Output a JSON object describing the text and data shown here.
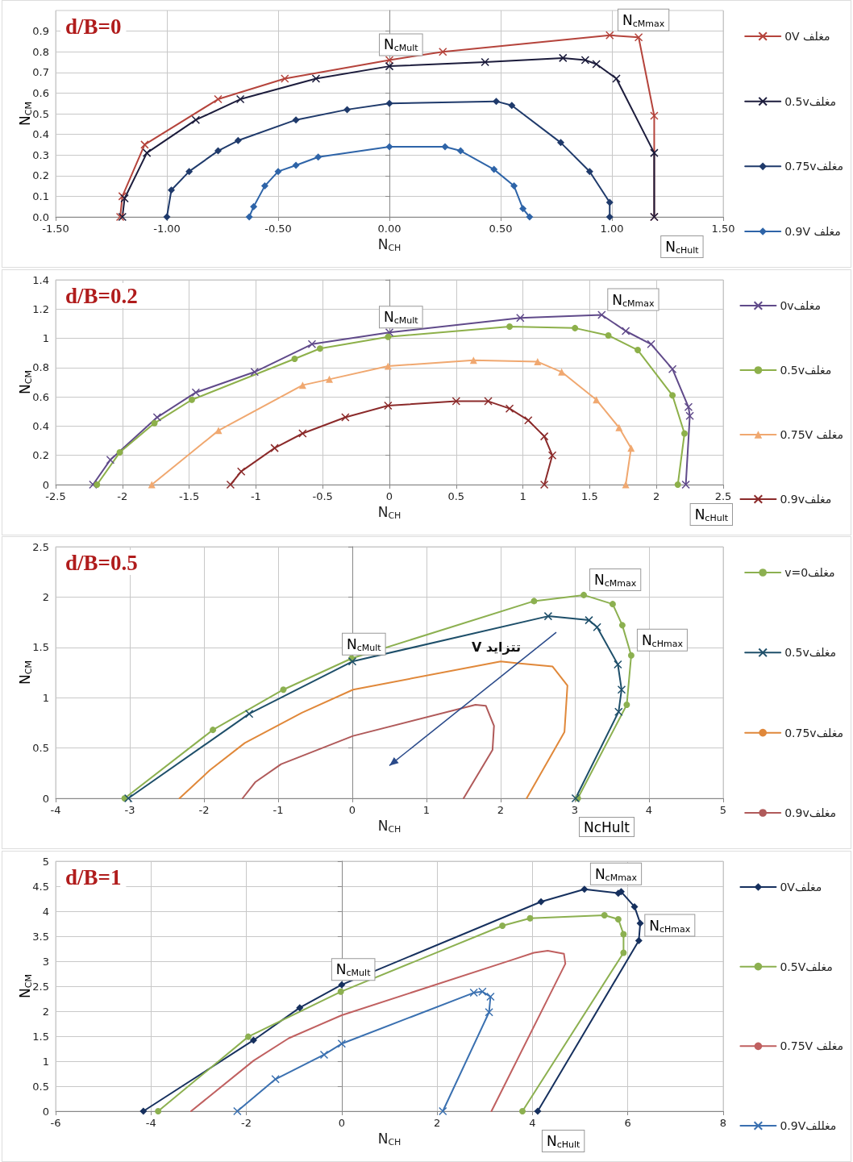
{
  "chart_data": [
    {
      "type": "line",
      "title": "d/B=0",
      "xlabel": "N$_{CH}$",
      "ylabel": "N$_{CM}$",
      "grid": true,
      "legend": "right",
      "xlim": [
        -1.5,
        1.5
      ],
      "xticks": [
        {
          "value": -1.5,
          "label": "-1.50"
        },
        {
          "value": -1,
          "label": "-1.00"
        },
        {
          "value": -0.5,
          "label": "-0.50"
        },
        {
          "value": 0,
          "label": "0.00"
        },
        {
          "value": 0.5,
          "label": "0.50"
        },
        {
          "value": 1,
          "label": "1.00"
        },
        {
          "value": 1.5,
          "label": "1.50"
        }
      ],
      "ylim": [
        0,
        1
      ],
      "yticks": [
        {
          "value": 0,
          "label": "0.0"
        },
        0.1,
        0.2,
        0.3,
        0.4,
        0.5,
        0.6,
        0.7,
        0.8,
        0.9
      ],
      "annotations": [
        {
          "text": "N$_{cMult}$",
          "x": 0,
          "y": 0.76
        },
        {
          "text": "N$_{cMmax}$",
          "x": 1.0,
          "y": 0.88
        },
        {
          "text": "N$_{cHult}$",
          "x": 1.2,
          "y": 0
        }
      ],
      "series": [
        {
          "name": "0V مغلف",
          "color": "#b5443c",
          "marker": "cross",
          "x": [
            -1.21,
            -1.2,
            -1.1,
            -0.77,
            -0.47,
            0,
            0.24,
            0.99,
            1.12,
            1.19,
            1.19
          ],
          "values": [
            0,
            0.1,
            0.35,
            0.57,
            0.67,
            0.76,
            0.8,
            0.88,
            0.87,
            0.49,
            0
          ]
        },
        {
          "name": "0.5vمغلف",
          "color": "#1c1c3c",
          "marker": "cross",
          "x": [
            -1.2,
            -1.19,
            -1.09,
            -0.87,
            -0.67,
            -0.33,
            0,
            0.43,
            0.78,
            0.88,
            0.93,
            1.02,
            1.19,
            1.19
          ],
          "values": [
            0,
            0.09,
            0.31,
            0.47,
            0.57,
            0.67,
            0.73,
            0.75,
            0.77,
            0.76,
            0.74,
            0.67,
            0.31,
            0
          ]
        },
        {
          "name": "0.75vمغلف",
          "color": "#1f3a6b",
          "marker": "diamond",
          "x": [
            -1.0,
            -0.98,
            -0.9,
            -0.77,
            -0.68,
            -0.42,
            -0.19,
            0,
            0.48,
            0.55,
            0.77,
            0.9,
            0.99,
            0.99
          ],
          "values": [
            0,
            0.13,
            0.22,
            0.32,
            0.37,
            0.47,
            0.52,
            0.55,
            0.56,
            0.54,
            0.36,
            0.22,
            0.07,
            0
          ]
        },
        {
          "name": "0.9V مغلف",
          "color": "#2e64a8",
          "marker": "diamond",
          "x": [
            -0.63,
            -0.61,
            -0.56,
            -0.5,
            -0.42,
            -0.32,
            0,
            0.25,
            0.32,
            0.47,
            0.56,
            0.6,
            0.63
          ],
          "values": [
            0,
            0.05,
            0.15,
            0.22,
            0.25,
            0.29,
            0.34,
            0.34,
            0.32,
            0.23,
            0.15,
            0.04,
            0
          ]
        }
      ]
    },
    {
      "type": "line",
      "title": "d/B=0.2",
      "xlabel": "N$_{CH}$",
      "ylabel": "N$_{CM}$",
      "grid": true,
      "legend": "right",
      "xlim": [
        -2.5,
        2.5
      ],
      "xticks": [
        -2.5,
        -2,
        -1.5,
        -1,
        -0.5,
        0,
        0.5,
        1,
        1.5,
        2,
        2.5
      ],
      "ylim": [
        0,
        1.4
      ],
      "yticks": [
        0,
        0.2,
        0.4,
        0.6,
        0.8,
        1,
        1.2,
        1.4
      ],
      "annotations": [
        {
          "text": "N$_{cMult}$",
          "x": 0,
          "y": 1.04
        },
        {
          "text": "N$_{cMmax}$",
          "x": 1.59,
          "y": 1.16
        },
        {
          "text": "N$_{cHult}$",
          "x": 2.22,
          "y": 0
        }
      ],
      "series": [
        {
          "name": "0vمغلف",
          "color": "#604a8a",
          "marker": "cross",
          "x": [
            -2.22,
            -2.09,
            -1.74,
            -1.45,
            -1.01,
            -0.58,
            0,
            0.98,
            1.59,
            1.77,
            1.96,
            2.12,
            2.24,
            2.25,
            2.22
          ],
          "values": [
            0,
            0.17,
            0.46,
            0.63,
            0.77,
            0.96,
            1.04,
            1.14,
            1.16,
            1.05,
            0.96,
            0.79,
            0.53,
            0.47,
            0
          ]
        },
        {
          "name": "0.5vمغلف",
          "color": "#8db04a",
          "marker": "circle",
          "x": [
            -2.19,
            -2.02,
            -1.76,
            -1.48,
            -0.71,
            -0.52,
            -0.01,
            0.9,
            1.39,
            1.64,
            1.86,
            2.12,
            2.21,
            2.16
          ],
          "values": [
            0,
            0.22,
            0.42,
            0.58,
            0.86,
            0.93,
            1.01,
            1.08,
            1.07,
            1.02,
            0.92,
            0.61,
            0.35,
            0
          ]
        },
        {
          "name": "0.75V مغلف",
          "color": "#f0a870",
          "marker": "triangle",
          "x": [
            -1.78,
            -1.28,
            -0.65,
            -0.45,
            -0.01,
            0.63,
            1.11,
            1.29,
            1.55,
            1.72,
            1.81,
            1.77
          ],
          "values": [
            0,
            0.37,
            0.68,
            0.72,
            0.81,
            0.85,
            0.84,
            0.77,
            0.58,
            0.39,
            0.25,
            0
          ]
        },
        {
          "name": "0.9vمغلف",
          "color": "#8b2a2a",
          "marker": "cross",
          "x": [
            -1.19,
            -1.11,
            -0.86,
            -0.65,
            -0.33,
            -0.01,
            0.5,
            0.74,
            0.9,
            1.04,
            1.16,
            1.22,
            1.16
          ],
          "values": [
            0,
            0.09,
            0.25,
            0.35,
            0.46,
            0.54,
            0.57,
            0.57,
            0.52,
            0.44,
            0.33,
            0.2,
            0
          ]
        }
      ]
    },
    {
      "type": "line",
      "title": "d/B=0.5",
      "xlabel": "N$_{CH}$",
      "ylabel": "N$_{CM}$",
      "grid": true,
      "legend": "right",
      "xlim": [
        -4,
        5
      ],
      "xticks": [
        -4,
        -3,
        -2,
        -1,
        0,
        1,
        2,
        3,
        4,
        5
      ],
      "ylim": [
        0,
        2.5
      ],
      "yticks": [
        0,
        0.5,
        1,
        1.5,
        2,
        2.5
      ],
      "annotations": [
        {
          "text": "N$_{cMult}$",
          "x": 0,
          "y": 1.38
        },
        {
          "text": "N$_{cMmax}$",
          "x": 3.12,
          "y": 2.02
        },
        {
          "text": "N$_{cHmax}$",
          "x": 3.76,
          "y": 1.42
        },
        {
          "text": "NcHult",
          "x": 3.0,
          "y": 0
        },
        "V تتزايد"
      ],
      "series": [
        {
          "name": "v=0مغلف",
          "color": "#8cb050",
          "marker": "circle",
          "x": [
            -3.07,
            -1.88,
            -0.93,
            -0.01,
            2.45,
            3.12,
            3.51,
            3.64,
            3.76,
            3.7,
            3.04
          ],
          "values": [
            0,
            0.68,
            1.08,
            1.39,
            1.96,
            2.02,
            1.93,
            1.72,
            1.42,
            0.93,
            0
          ]
        },
        {
          "name": "0.5vمغلف",
          "color": "#1e4f6a",
          "marker": "cross",
          "x": [
            -3.02,
            -1.39,
            0,
            2.64,
            3.19,
            3.3,
            3.58,
            3.63,
            3.59,
            3.01
          ],
          "values": [
            0,
            0.84,
            1.36,
            1.81,
            1.77,
            1.7,
            1.33,
            1.08,
            0.86,
            0
          ]
        },
        {
          "name": "0.75vمغلف",
          "color": "#e0883a",
          "marker": "none",
          "x": [
            -2.33,
            -1.92,
            -1.45,
            -0.68,
            0.01,
            2.0,
            2.26,
            2.7,
            2.9,
            2.86,
            2.35
          ],
          "values": [
            0,
            0.28,
            0.55,
            0.85,
            1.08,
            1.36,
            1.34,
            1.31,
            1.12,
            0.66,
            0
          ]
        },
        {
          "name": "0.9vمغلف",
          "color": "#b05a5a",
          "marker": "none",
          "x": [
            -1.48,
            -1.31,
            -0.96,
            0.01,
            1.66,
            1.8,
            1.91,
            1.89,
            1.5
          ],
          "values": [
            0,
            0.16,
            0.34,
            0.62,
            0.93,
            0.92,
            0.72,
            0.48,
            0
          ]
        }
      ]
    },
    {
      "type": "line",
      "title": "d/B=1",
      "xlabel": "N$_{CH}$",
      "ylabel": "N$_{CM}$",
      "grid": true,
      "legend": "right",
      "xlim": [
        -6,
        8
      ],
      "xticks": [
        -6,
        -4,
        -2,
        0,
        2,
        4,
        6,
        8
      ],
      "ylim": [
        0,
        5
      ],
      "yticks": [
        0,
        0.5,
        1,
        1.5,
        2,
        2.5,
        3,
        3.5,
        4,
        4.5,
        5
      ],
      "annotations": [
        {
          "text": "N$_{cMmax}$",
          "x": 5.09,
          "y": 4.44
        },
        {
          "text": "N$_{cMult}$",
          "x": 0,
          "y": 2.53
        },
        {
          "text": "N$_{cHmax}$",
          "x": 6.23,
          "y": 3.41
        },
        {
          "text": "N$_{cHult}$",
          "x": 4.11,
          "y": 0
        }
      ],
      "series": [
        {
          "name": "0Vمغلف",
          "color": "#16305e",
          "marker": "diamond",
          "x": [
            -4.16,
            -1.85,
            -0.88,
            0,
            4.18,
            5.09,
            5.8,
            5.86,
            6.14,
            6.26,
            6.23,
            4.11
          ],
          "values": [
            0,
            1.42,
            2.07,
            2.53,
            4.19,
            4.44,
            4.36,
            4.39,
            4.09,
            3.76,
            3.41,
            0
          ]
        },
        {
          "name": "0.5Vمغلف",
          "color": "#8cb050",
          "marker": "circle",
          "x": [
            -3.85,
            -1.96,
            -0.02,
            3.37,
            3.95,
            5.51,
            5.8,
            5.91,
            5.91,
            3.79
          ],
          "values": [
            0,
            1.49,
            2.39,
            3.71,
            3.86,
            3.92,
            3.84,
            3.54,
            3.17,
            0
          ]
        },
        {
          "name": "0.75V مغلف",
          "color": "#c06060",
          "marker": "none",
          "x": [
            -3.16,
            -1.85,
            -1.11,
            0,
            3.52,
            4.03,
            4.32,
            4.66,
            4.69,
            3.14
          ],
          "values": [
            0,
            1.01,
            1.46,
            1.92,
            3.01,
            3.17,
            3.21,
            3.15,
            2.95,
            0
          ]
        },
        {
          "name": "0.9Vمغللف",
          "color": "#3a70b0",
          "marker": "cross",
          "x": [
            -2.19,
            -1.39,
            -0.37,
            0,
            2.77,
            2.95,
            3.12,
            3.09,
            2.12
          ],
          "values": [
            0,
            0.64,
            1.13,
            1.35,
            2.37,
            2.39,
            2.29,
            1.98,
            0
          ]
        }
      ]
    }
  ]
}
